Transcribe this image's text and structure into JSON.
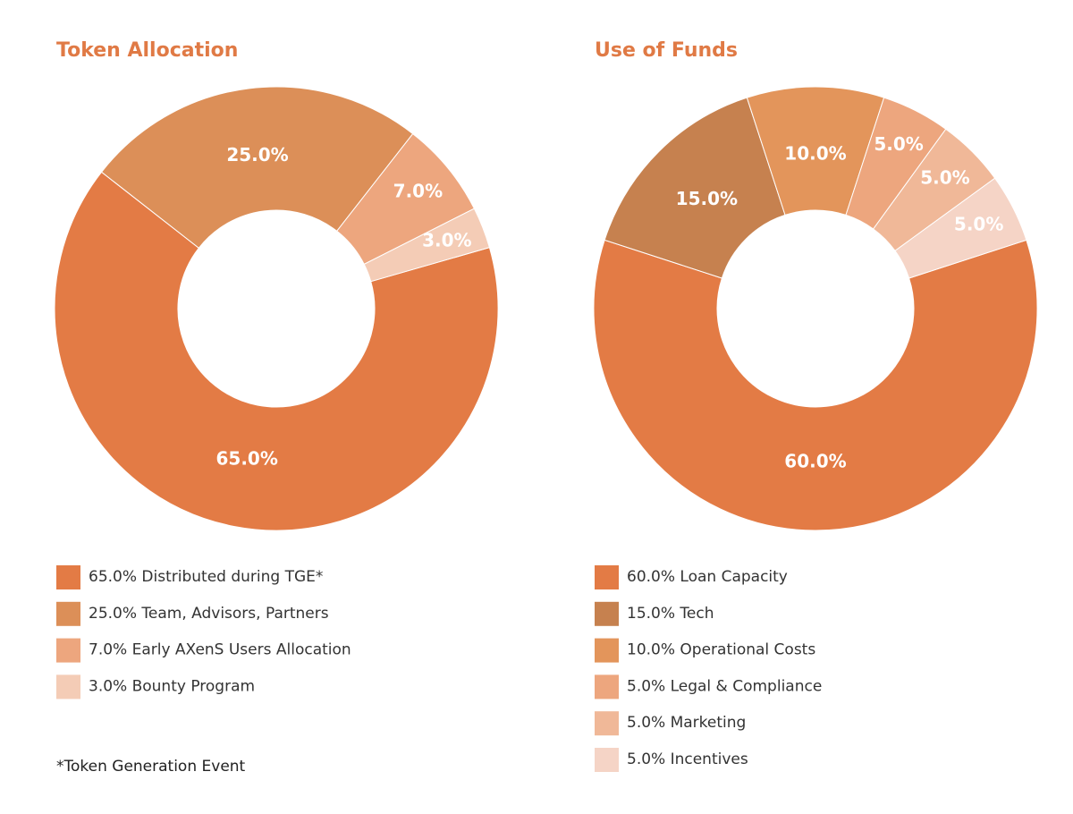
{
  "chart_data": [
    {
      "type": "donut",
      "title": "Token Allocation",
      "categories": [
        "65.0% Distributed during TGE*",
        "25.0% Team, Advisors, Partners",
        "7.0% Early AXenS Users Allocation",
        "3.0% Bounty Program"
      ],
      "values": [
        65,
        25,
        7,
        3
      ],
      "value_labels": [
        "65.0%",
        "25.0%",
        "7.0%",
        "3.0%"
      ],
      "colors": [
        "#e37b45",
        "#dc8f58",
        "#eda67e",
        "#f4ccb6"
      ],
      "annotation": "*Token Generation Event"
    },
    {
      "type": "donut",
      "title": "Use of Funds",
      "categories": [
        "60.0% Loan Capacity",
        "15.0% Tech",
        "10.0% Operational Costs",
        "5.0% Legal & Compliance",
        "5.0% Marketing",
        "5.0% Incentives"
      ],
      "values": [
        60,
        15,
        10,
        5,
        5,
        5
      ],
      "value_labels": [
        "60.0%",
        "15.0%",
        "10.0%",
        "5.0%",
        "5.0%",
        "5.0%"
      ],
      "colors": [
        "#e37b45",
        "#c6814f",
        "#e3955b",
        "#eda67e",
        "#f0b898",
        "#f5d4c6"
      ]
    }
  ]
}
